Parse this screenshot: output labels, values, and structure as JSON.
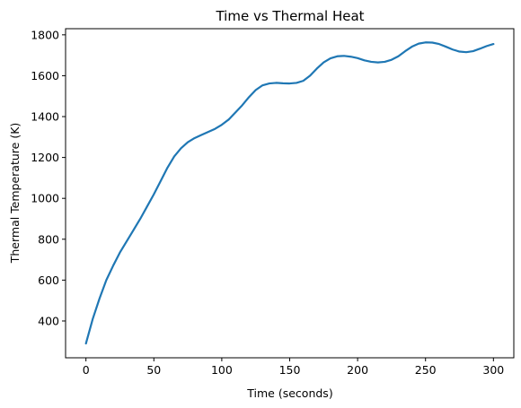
{
  "chart_data": {
    "type": "line",
    "title": "Time vs Thermal Heat",
    "xlabel": "Time (seconds)",
    "ylabel": "Thermal Temperature (K)",
    "xlim": [
      -15,
      315
    ],
    "ylim": [
      220,
      1830
    ],
    "xticks": [
      0,
      50,
      100,
      150,
      200,
      250,
      300
    ],
    "yticks": [
      400,
      600,
      800,
      1000,
      1200,
      1400,
      1600,
      1800
    ],
    "grid": false,
    "color": "#1f77b4",
    "series": [
      {
        "x": [
          0,
          5,
          10,
          15,
          20,
          25,
          30,
          35,
          40,
          45,
          50,
          55,
          60,
          65,
          70,
          75,
          80,
          85,
          90,
          95,
          100,
          105,
          110,
          115,
          120,
          125,
          130,
          135,
          140,
          145,
          150,
          155,
          160,
          165,
          170,
          175,
          180,
          185,
          190,
          195,
          200,
          205,
          210,
          215,
          220,
          225,
          230,
          235,
          240,
          245,
          250,
          255,
          260,
          265,
          270,
          275,
          280,
          285,
          290,
          295,
          300
        ],
        "y": [
          290,
          410,
          510,
          600,
          670,
          735,
          790,
          845,
          900,
          960,
          1020,
          1085,
          1150,
          1205,
          1245,
          1275,
          1295,
          1310,
          1325,
          1340,
          1360,
          1385,
          1420,
          1455,
          1495,
          1530,
          1553,
          1562,
          1565,
          1563,
          1562,
          1565,
          1575,
          1600,
          1635,
          1665,
          1685,
          1695,
          1697,
          1693,
          1686,
          1675,
          1668,
          1665,
          1668,
          1678,
          1695,
          1720,
          1742,
          1757,
          1763,
          1762,
          1755,
          1742,
          1728,
          1718,
          1715,
          1720,
          1732,
          1745,
          1755
        ]
      }
    ]
  }
}
